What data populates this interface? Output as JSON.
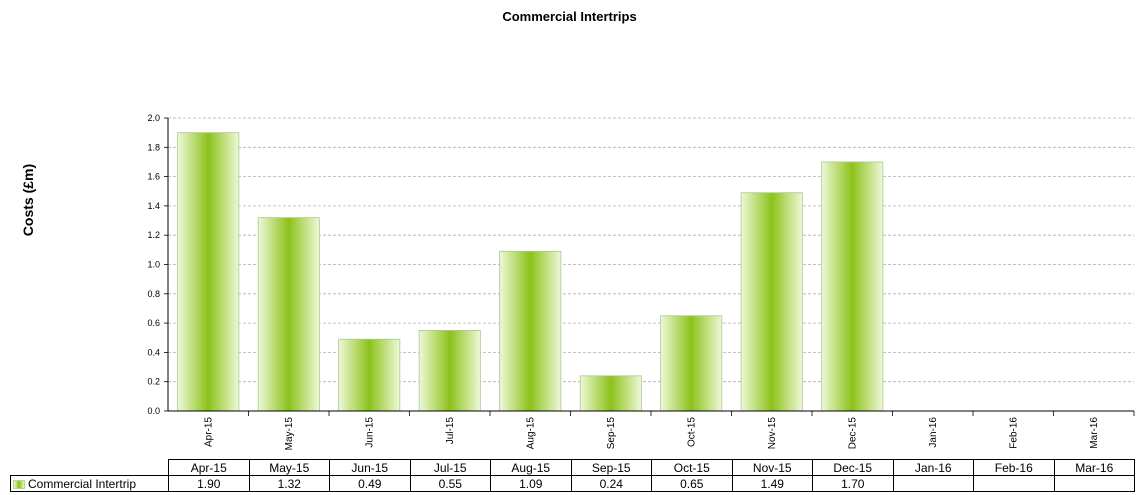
{
  "chart_data": {
    "type": "bar",
    "title": "Commercial Intertrips",
    "ylabel": "Costs (£m)",
    "xlabel": "",
    "categories": [
      "Apr-15",
      "May-15",
      "Jun-15",
      "Jul-15",
      "Aug-15",
      "Sep-15",
      "Oct-15",
      "Nov-15",
      "Dec-15",
      "Jan-16",
      "Feb-16",
      "Mar-16"
    ],
    "series": [
      {
        "name": "Commercial Intertrip",
        "values": [
          1.9,
          1.32,
          0.49,
          0.55,
          1.09,
          0.24,
          0.65,
          1.49,
          1.7,
          null,
          null,
          null
        ]
      }
    ],
    "value_labels": [
      "1.90",
      "1.32",
      "0.49",
      "0.55",
      "1.09",
      "0.24",
      "0.65",
      "1.49",
      "1.70",
      "",
      "",
      ""
    ],
    "ylim": [
      0,
      2.0
    ],
    "yticks": [
      "0.0",
      "0.2",
      "0.4",
      "0.6",
      "0.8",
      "1.0",
      "1.2",
      "1.4",
      "1.6",
      "1.8",
      "2.0"
    ],
    "grid": true,
    "legend": "data-table",
    "colors": {
      "bar_center": "#8cc21a",
      "bar_edge": "#eef8d8",
      "bar_stroke": "#a8c890",
      "grid": "#b0b0b0"
    }
  }
}
